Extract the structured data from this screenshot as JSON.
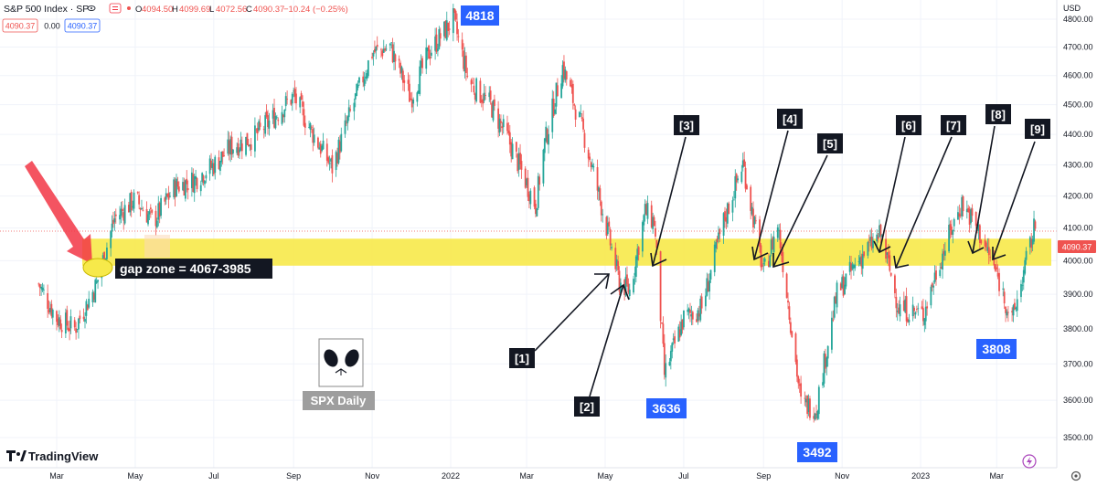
{
  "header": {
    "symbol": "S&P 500 Index · SP",
    "ohlc": {
      "O": "4094.50",
      "H": "4099.69",
      "L": "4072.56",
      "C": "4090.37",
      "chg": "−10.24 (−0.25%)"
    },
    "sell_price": "4090.37",
    "spread": "0.00",
    "buy_price": "4090.37"
  },
  "axis": {
    "currency": "USD",
    "y_ticks": [
      "4800.00",
      "4700.00",
      "4600.00",
      "4500.00",
      "4400.00",
      "4300.00",
      "4200.00",
      "4100.00",
      "4000.00",
      "3900.00",
      "3800.00",
      "3700.00",
      "3600.00",
      "3500.00"
    ],
    "x_ticks": [
      "Mar",
      "May",
      "Jul",
      "Sep",
      "Nov",
      "2022",
      "Mar",
      "May",
      "Jul",
      "Sep",
      "Nov",
      "2023",
      "Mar"
    ],
    "last_price": "4090.37"
  },
  "annotations": {
    "gap_zone": "gap zone = 4067-3985",
    "peak": "4818",
    "low_3636": "3636",
    "low_3492": "3492",
    "low_3808": "3808",
    "logo_caption": "SPX Daily",
    "touches": [
      "[1]",
      "[2]",
      "[3]",
      "[4]",
      "[5]",
      "[6]",
      "[7]",
      "[8]",
      "[9]"
    ]
  },
  "branding": {
    "name": "TradingView"
  },
  "colors": {
    "up": "#26a69a",
    "down": "#ef5350",
    "label_blue": "#2962ff",
    "gap_yellow": "#f7e94a",
    "arrow_red": "#f23645"
  },
  "chart_data": {
    "type": "candlestick",
    "title": "S&P 500 Index · SP",
    "ylabel": "USD",
    "ylim": [
      3460,
      4840
    ],
    "y_scale": "log",
    "x": [
      "2021-02-15",
      "2021-03-01",
      "2021-03-15",
      "2021-04-01",
      "2021-04-15",
      "2021-05-01",
      "2021-05-15",
      "2021-06-01",
      "2021-06-15",
      "2021-07-01",
      "2021-07-15",
      "2021-08-01",
      "2021-08-15",
      "2021-09-01",
      "2021-09-15",
      "2021-10-01",
      "2021-10-15",
      "2021-11-01",
      "2021-11-15",
      "2021-12-01",
      "2021-12-15",
      "2022-01-03",
      "2022-01-15",
      "2022-02-01",
      "2022-02-15",
      "2022-03-08",
      "2022-03-15",
      "2022-03-29",
      "2022-04-15",
      "2022-05-01",
      "2022-05-12",
      "2022-05-20",
      "2022-06-01",
      "2022-06-08",
      "2022-06-16",
      "2022-07-01",
      "2022-07-15",
      "2022-08-01",
      "2022-08-16",
      "2022-09-01",
      "2022-09-12",
      "2022-09-30",
      "2022-10-12",
      "2022-10-28",
      "2022-11-15",
      "2022-12-01",
      "2022-12-15",
      "2023-01-03",
      "2023-01-15",
      "2023-02-02",
      "2023-02-15",
      "2023-03-01",
      "2023-03-13",
      "2023-03-31"
    ],
    "y": [
      3930,
      3830,
      3800,
      3930,
      4130,
      4190,
      4120,
      4230,
      4250,
      4300,
      4360,
      4390,
      4450,
      4530,
      4410,
      4290,
      4470,
      4680,
      4700,
      4520,
      4680,
      4800,
      4580,
      4500,
      4380,
      4170,
      4370,
      4630,
      4390,
      4120,
      3935,
      3910,
      4150,
      4120,
      3670,
      3830,
      3860,
      4120,
      4305,
      3960,
      4110,
      3590,
      3580,
      3900,
      4010,
      4080,
      3860,
      3840,
      3990,
      4180,
      4090,
      3960,
      3820,
      4110
    ],
    "y_final": 4090.37,
    "gap_zone": [
      3985,
      4067
    ],
    "labeled_levels": {
      "peak": 4818,
      "low_june": 3636,
      "low_oct": 3492,
      "low_mar": 3808
    }
  }
}
